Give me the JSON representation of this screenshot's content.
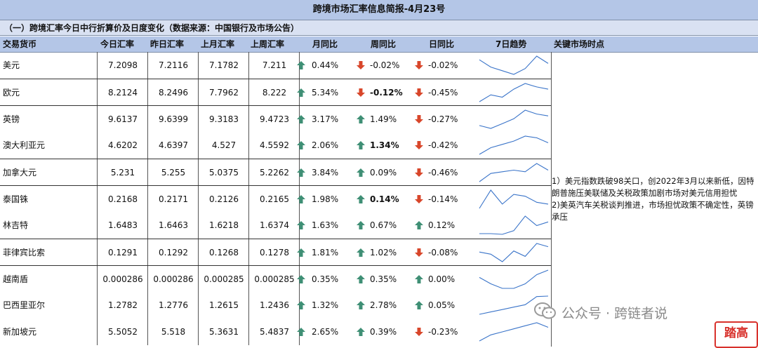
{
  "report_title": "跨境市场汇率信息简报-4月23号",
  "section_title": "（一）跨境汇率今日中行折算价及日度变化（数据来源：中国银行及市场公告）",
  "headers": {
    "currency": "交易货币",
    "today": "今日汇率",
    "yesterday": "昨日汇率",
    "last_month": "上月汇率",
    "last_week": "上周汇率",
    "mom": "月同比",
    "wow": "周同比",
    "dod": "日同比",
    "trend": "7日趋势",
    "notes": "关键市场时点"
  },
  "colors": {
    "up": "#3f8f75",
    "down": "#d8462a",
    "line": "#3a74c9"
  },
  "rows": [
    {
      "name": "美元",
      "today": "7.2098",
      "yesterday": "7.2116",
      "last_month": "7.1782",
      "last_week": "7.211",
      "mom": "0.44%",
      "mom_dir": "up",
      "wow": "-0.02%",
      "wow_dir": "down",
      "wow_bold": false,
      "dod": "-0.02%",
      "dod_dir": "down",
      "trend": [
        7.22,
        7.21,
        7.205,
        7.2,
        7.208,
        7.225,
        7.215
      ]
    },
    {
      "name": "欧元",
      "today": "8.2124",
      "yesterday": "8.2496",
      "last_month": "7.7962",
      "last_week": "8.222",
      "mom": "5.34%",
      "mom_dir": "up",
      "wow": "-0.12%",
      "wow_dir": "down",
      "wow_bold": true,
      "dod": "-0.45%",
      "dod_dir": "down",
      "trend": [
        8.1,
        8.16,
        8.14,
        8.21,
        8.26,
        8.23,
        8.21
      ]
    },
    {
      "name": "英镑",
      "today": "9.6137",
      "yesterday": "9.6399",
      "last_month": "9.3183",
      "last_week": "9.4723",
      "mom": "3.17%",
      "mom_dir": "up",
      "wow": "1.49%",
      "wow_dir": "up",
      "wow_bold": false,
      "dod": "-0.27%",
      "dod_dir": "down",
      "trend": [
        9.5,
        9.47,
        9.52,
        9.57,
        9.66,
        9.62,
        9.6
      ]
    },
    {
      "name": "澳大利亚元",
      "today": "4.6202",
      "yesterday": "4.6397",
      "last_month": "4.527",
      "last_week": "4.5592",
      "mom": "2.06%",
      "mom_dir": "up",
      "wow": "1.34%",
      "wow_dir": "up",
      "wow_bold": true,
      "dod": "-0.42%",
      "dod_dir": "down",
      "trend": [
        4.54,
        4.58,
        4.6,
        4.62,
        4.65,
        4.64,
        4.61
      ]
    },
    {
      "name": "加拿大元",
      "today": "5.231",
      "yesterday": "5.255",
      "last_month": "5.0375",
      "last_week": "5.2262",
      "mom": "3.84%",
      "mom_dir": "up",
      "wow": "0.09%",
      "wow_dir": "up",
      "wow_bold": false,
      "dod": "-0.46%",
      "dod_dir": "down",
      "trend": [
        5.15,
        5.2,
        5.21,
        5.22,
        5.21,
        5.26,
        5.22
      ]
    },
    {
      "name": "泰国铢",
      "today": "0.2168",
      "yesterday": "0.2171",
      "last_month": "0.2126",
      "last_week": "0.2165",
      "mom": "1.98%",
      "mom_dir": "up",
      "wow": "0.14%",
      "wow_dir": "up",
      "wow_bold": true,
      "dod": "-0.14%",
      "dod_dir": "down",
      "trend": [
        0.2155,
        0.2185,
        0.2162,
        0.2178,
        0.2175,
        0.2165,
        0.2162
      ]
    },
    {
      "name": "林吉特",
      "today": "1.6483",
      "yesterday": "1.6463",
      "last_month": "1.6218",
      "last_week": "1.6374",
      "mom": "1.63%",
      "mom_dir": "up",
      "wow": "0.67%",
      "wow_dir": "up",
      "wow_bold": false,
      "dod": "0.12%",
      "dod_dir": "up",
      "trend": [
        1.636,
        1.636,
        1.635,
        1.64,
        1.66,
        1.647,
        1.652
      ]
    },
    {
      "name": "菲律宾比索",
      "today": "0.1291",
      "yesterday": "0.1292",
      "last_month": "0.1268",
      "last_week": "0.1278",
      "mom": "1.81%",
      "mom_dir": "up",
      "wow": "1.02%",
      "wow_dir": "up",
      "wow_bold": false,
      "dod": "-0.08%",
      "dod_dir": "down",
      "trend": [
        0.1285,
        0.1283,
        0.1276,
        0.1286,
        0.1281,
        0.1293,
        0.129
      ]
    },
    {
      "name": "越南盾",
      "today": "0.000286",
      "yesterday": "0.000286",
      "last_month": "0.000285",
      "last_week": "0.000285",
      "mom": "0.35%",
      "mom_dir": "up",
      "wow": "0.35%",
      "wow_dir": "up",
      "wow_bold": false,
      "dod": "0.00%",
      "dod_dir": "up",
      "trend": [
        0.0002862,
        0.0002855,
        0.000285,
        0.000285,
        0.0002855,
        0.0002865,
        0.000287
      ]
    },
    {
      "name": "巴西里亚尔",
      "today": "1.2782",
      "yesterday": "1.2776",
      "last_month": "1.2615",
      "last_week": "1.2436",
      "mom": "1.32%",
      "mom_dir": "up",
      "wow": "2.78%",
      "wow_dir": "up",
      "wow_bold": false,
      "dod": "0.05%",
      "dod_dir": "up",
      "trend": [
        1.24,
        1.245,
        1.25,
        1.255,
        1.26,
        1.277,
        1.278
      ]
    },
    {
      "name": "新加坡元",
      "today": "5.5052",
      "yesterday": "5.518",
      "last_month": "5.3631",
      "last_week": "5.4837",
      "mom": "2.65%",
      "mom_dir": "up",
      "wow": "0.39%",
      "wow_dir": "up",
      "wow_bold": false,
      "dod": "-0.23%",
      "dod_dir": "down",
      "trend": [
        5.46,
        5.48,
        5.49,
        5.5,
        5.51,
        5.52,
        5.505
      ]
    }
  ],
  "notes": [
    "1）美元指数跌破98关口，创2022年3月以来新低，因特朗普施压美联储及关税政策加剧市场对美元信用担忧",
    "2)美英汽车关税谈判推进，市场担忧政策不确定性，英镑承压"
  ],
  "watermark": "公众号 · 跨链者说",
  "stamp": "踏高"
}
